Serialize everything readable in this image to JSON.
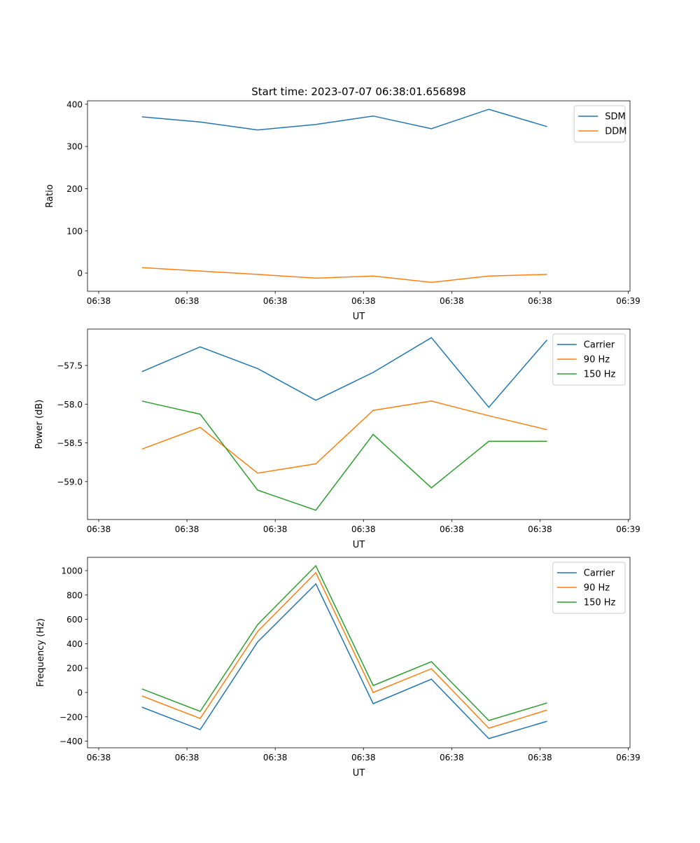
{
  "title": "Start time: 2023-07-07 06:38:01.656898",
  "chart_data": [
    {
      "type": "line",
      "xlabel": "UT",
      "ylabel": "Ratio",
      "x_unit": "seconds after 06:38:00",
      "x": [
        4.9,
        11.5,
        18.0,
        24.6,
        31.1,
        37.7,
        44.2,
        50.8
      ],
      "xlim": [
        -1.27,
        60.2
      ],
      "xticks": [
        0,
        10,
        20,
        30,
        40,
        50,
        60
      ],
      "xtick_labels": [
        "06:38",
        "06:38",
        "06:38",
        "06:38",
        "06:38",
        "06:38",
        "06:39"
      ],
      "ylim": [
        -43,
        408
      ],
      "yticks": [
        0,
        100,
        200,
        300,
        400
      ],
      "ytick_labels": [
        "0",
        "100",
        "200",
        "300",
        "400"
      ],
      "legend": "top-right",
      "series": [
        {
          "name": "SDM",
          "color": "#1f77b4",
          "values": [
            370,
            358,
            339,
            352,
            372,
            342,
            388,
            347
          ]
        },
        {
          "name": "DDM",
          "color": "#ff7f0e",
          "values": [
            13,
            5,
            -3,
            -12,
            -7,
            -22,
            -7,
            -3
          ]
        }
      ]
    },
    {
      "type": "line",
      "xlabel": "UT",
      "ylabel": "Power (dB)",
      "x_unit": "seconds after 06:38:00",
      "x": [
        4.9,
        11.5,
        18.0,
        24.6,
        31.1,
        37.7,
        44.2,
        50.8
      ],
      "xlim": [
        -1.27,
        60.2
      ],
      "xticks": [
        0,
        10,
        20,
        30,
        40,
        50,
        60
      ],
      "xtick_labels": [
        "06:38",
        "06:38",
        "06:38",
        "06:38",
        "06:38",
        "06:38",
        "06:39"
      ],
      "ylim": [
        -59.49,
        -57.03
      ],
      "yticks": [
        -57.5,
        -58.0,
        -58.5,
        -59.0
      ],
      "ytick_labels": [
        "−57.5",
        "−58.0",
        "−58.5",
        "−59.0"
      ],
      "legend": "top-right",
      "series": [
        {
          "name": "Carrier",
          "color": "#1f77b4",
          "values": [
            -57.58,
            -57.26,
            -57.54,
            -57.95,
            -57.59,
            -57.14,
            -58.04,
            -57.17
          ]
        },
        {
          "name": "90 Hz",
          "color": "#ff7f0e",
          "values": [
            -58.58,
            -58.3,
            -58.89,
            -58.77,
            -58.08,
            -57.96,
            -58.15,
            -58.33
          ]
        },
        {
          "name": "150 Hz",
          "color": "#2ca02c",
          "values": [
            -57.96,
            -58.13,
            -59.11,
            -59.37,
            -58.39,
            -59.08,
            -58.48,
            -58.48
          ]
        }
      ]
    },
    {
      "type": "line",
      "xlabel": "UT",
      "ylabel": "Frequency (Hz)",
      "x_unit": "seconds after 06:38:00",
      "x": [
        4.9,
        11.5,
        18.0,
        24.6,
        31.1,
        37.7,
        44.2,
        50.8
      ],
      "xlim": [
        -1.27,
        60.2
      ],
      "xticks": [
        0,
        10,
        20,
        30,
        40,
        50,
        60
      ],
      "xtick_labels": [
        "06:38",
        "06:38",
        "06:38",
        "06:38",
        "06:38",
        "06:38",
        "06:39"
      ],
      "ylim": [
        -454,
        1109
      ],
      "yticks": [
        -400,
        -200,
        0,
        200,
        400,
        600,
        800,
        1000
      ],
      "ytick_labels": [
        "−400",
        "−200",
        "0",
        "200",
        "400",
        "600",
        "800",
        "1000"
      ],
      "legend": "top-right",
      "series": [
        {
          "name": "Carrier",
          "color": "#1f77b4",
          "values": [
            -121,
            -305,
            414,
            891,
            -92,
            109,
            -379,
            -236
          ]
        },
        {
          "name": "90 Hz",
          "color": "#ff7f0e",
          "values": [
            -29,
            -213,
            500,
            983,
            0,
            195,
            -293,
            -144
          ]
        },
        {
          "name": "150 Hz",
          "color": "#2ca02c",
          "values": [
            29,
            -155,
            557,
            1040,
            57,
            253,
            -230,
            -86
          ]
        }
      ]
    }
  ]
}
